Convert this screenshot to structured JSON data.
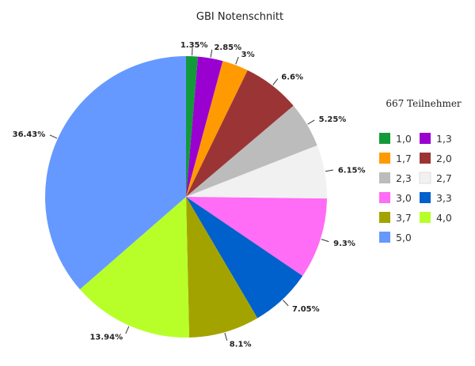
{
  "chart_data": {
    "type": "pie",
    "title": "GBI Notenschnitt",
    "legend_title": "667 Teilnehmer",
    "legend_position": "right",
    "start_angle_deg": 0,
    "direction": "clockwise",
    "slices": [
      {
        "label": "1,0",
        "value": 1.35,
        "display": "1.35%",
        "color": "#129a3a"
      },
      {
        "label": "1,3",
        "value": 2.85,
        "display": "2.85%",
        "color": "#9a00d0"
      },
      {
        "label": "1,7",
        "value": 3.0,
        "display": "3%",
        "color": "#ff9a00"
      },
      {
        "label": "2,0",
        "value": 6.6,
        "display": "6.6%",
        "color": "#9b3535"
      },
      {
        "label": "2,3",
        "value": 5.25,
        "display": "5.25%",
        "color": "#bcbcbc"
      },
      {
        "label": "2,7",
        "value": 6.15,
        "display": "6.15%",
        "color": "#f1f1f1"
      },
      {
        "label": "3,0",
        "value": 9.3,
        "display": "9.3%",
        "color": "#ff6cf5"
      },
      {
        "label": "3,3",
        "value": 7.05,
        "display": "7.05%",
        "color": "#0060cc"
      },
      {
        "label": "3,7",
        "value": 8.1,
        "display": "8.1%",
        "color": "#a3a300"
      },
      {
        "label": "4,0",
        "value": 13.94,
        "display": "13.94%",
        "color": "#b8ff2a"
      },
      {
        "label": "5,0",
        "value": 36.43,
        "display": "36.43%",
        "color": "#6699ff"
      }
    ]
  }
}
